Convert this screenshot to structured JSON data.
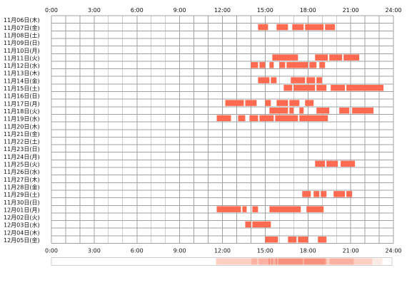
{
  "chart_data": {
    "type": "timeline",
    "title": "",
    "xlabel": "",
    "ylabel": "",
    "x_ticks": [
      "0:00",
      "3:00",
      "6:00",
      "9:00",
      "12:00",
      "15:00",
      "18:00",
      "21:00",
      "24:00"
    ],
    "xlim": [
      0,
      24
    ],
    "grid": true,
    "bar_color": "#ff6a50",
    "grid_color": "#a0a0a0",
    "days": [
      {
        "label": "11月06日(木)",
        "intervals": []
      },
      {
        "label": "11月07日(金)",
        "intervals": [
          [
            14.5,
            15.2
          ],
          [
            15.8,
            16.6
          ],
          [
            16.9,
            17.7
          ],
          [
            17.8,
            19.1
          ],
          [
            19.2,
            19.9
          ]
        ]
      },
      {
        "label": "11月08日(土)",
        "intervals": []
      },
      {
        "label": "11月09日(日)",
        "intervals": []
      },
      {
        "label": "11月10日(月)",
        "intervals": []
      },
      {
        "label": "11月11日(火)",
        "intervals": [
          [
            15.5,
            17.3
          ],
          [
            18.5,
            19.4
          ],
          [
            19.5,
            20.4
          ],
          [
            20.5,
            21.6
          ]
        ]
      },
      {
        "label": "11月12日(水)",
        "intervals": [
          [
            14.0,
            14.5
          ],
          [
            14.6,
            15.0
          ],
          [
            15.3,
            15.6
          ],
          [
            16.0,
            16.4
          ],
          [
            16.5,
            18.0
          ],
          [
            18.1,
            18.6
          ],
          [
            18.8,
            19.2
          ]
        ]
      },
      {
        "label": "11月13日(木)",
        "intervals": []
      },
      {
        "label": "11月14日(金)",
        "intervals": [
          [
            14.5,
            15.3
          ],
          [
            15.4,
            15.8
          ],
          [
            16.8,
            17.8
          ],
          [
            17.9,
            18.5
          ],
          [
            18.6,
            19.0
          ]
        ]
      },
      {
        "label": "11月15日(土)",
        "intervals": [
          [
            16.3,
            16.9
          ],
          [
            17.0,
            18.5
          ],
          [
            18.6,
            19.3
          ],
          [
            19.6,
            20.6
          ],
          [
            20.7,
            23.3
          ]
        ]
      },
      {
        "label": "11月16日(日)",
        "intervals": []
      },
      {
        "label": "11月17日(月)",
        "intervals": [
          [
            12.2,
            13.5
          ],
          [
            13.6,
            14.4
          ],
          [
            15.0,
            15.4
          ],
          [
            15.8,
            16.6
          ],
          [
            16.7,
            17.4
          ],
          [
            17.8,
            18.4
          ]
        ]
      },
      {
        "label": "11月18日(火)",
        "intervals": [
          [
            15.3,
            16.6
          ],
          [
            16.7,
            17.0
          ],
          [
            17.4,
            17.7
          ],
          [
            18.6,
            19.5
          ],
          [
            20.2,
            20.9
          ],
          [
            21.1,
            22.6
          ]
        ]
      },
      {
        "label": "11月19日(水)",
        "intervals": [
          [
            11.6,
            12.6
          ],
          [
            13.1,
            13.6
          ],
          [
            13.9,
            14.5
          ],
          [
            14.6,
            15.6
          ],
          [
            15.7,
            17.3
          ],
          [
            17.4,
            19.4
          ]
        ]
      },
      {
        "label": "11月20日(木)",
        "intervals": []
      },
      {
        "label": "11月21日(金)",
        "intervals": []
      },
      {
        "label": "11月22日(土)",
        "intervals": []
      },
      {
        "label": "11月23日(日)",
        "intervals": []
      },
      {
        "label": "11月24日(月)",
        "intervals": []
      },
      {
        "label": "11月25日(火)",
        "intervals": [
          [
            18.5,
            19.2
          ],
          [
            19.3,
            20.1
          ],
          [
            20.3,
            21.3
          ]
        ]
      },
      {
        "label": "11月26日(水)",
        "intervals": []
      },
      {
        "label": "11月27日(木)",
        "intervals": []
      },
      {
        "label": "11月28日(金)",
        "intervals": []
      },
      {
        "label": "11月29日(土)",
        "intervals": [
          [
            17.6,
            18.2
          ],
          [
            18.4,
            18.8
          ],
          [
            18.9,
            19.3
          ],
          [
            19.8,
            20.6
          ],
          [
            20.7,
            21.1
          ]
        ]
      },
      {
        "label": "11月30日(日)",
        "intervals": []
      },
      {
        "label": "12月01日(月)",
        "intervals": [
          [
            11.6,
            13.3
          ],
          [
            13.4,
            13.7
          ],
          [
            14.1,
            14.5
          ],
          [
            15.3,
            17.5
          ],
          [
            17.9,
            19.1
          ]
        ]
      },
      {
        "label": "12月02日(火)",
        "intervals": []
      },
      {
        "label": "12月03日(水)",
        "intervals": [
          [
            13.6,
            14.0
          ],
          [
            14.1,
            15.4
          ]
        ]
      },
      {
        "label": "12月04日(木)",
        "intervals": []
      },
      {
        "label": "12月05日(金)",
        "intervals": [
          [
            15.0,
            15.9
          ],
          [
            16.6,
            17.2
          ],
          [
            17.3,
            18.0
          ],
          [
            18.7,
            19.3
          ]
        ]
      }
    ],
    "summary_strip": {
      "colors": {
        "empty": "#fbe9e4",
        "low": "#fdcfc3",
        "mid": "#fbb1a1",
        "high": "#f7907c"
      }
    }
  }
}
